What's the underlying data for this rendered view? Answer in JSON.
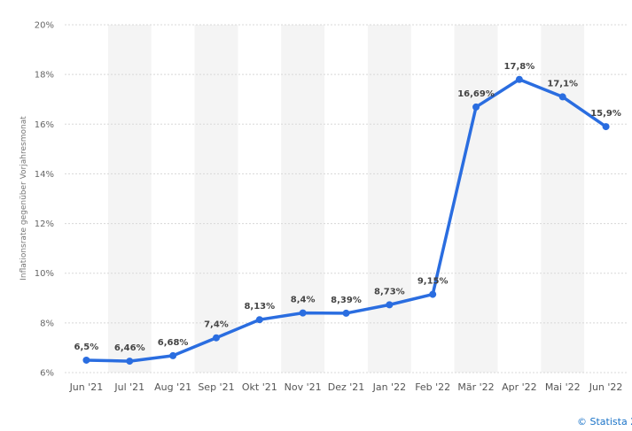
{
  "chart_data": {
    "type": "line",
    "categories": [
      "Jun '21",
      "Jul '21",
      "Aug '21",
      "Sep '21",
      "Okt '21",
      "Nov '21",
      "Dez '21",
      "Jan '22",
      "Feb '22",
      "Mär '22",
      "Apr '22",
      "Mai '22",
      "Jun '22"
    ],
    "series": [
      {
        "values": [
          6.5,
          6.46,
          6.68,
          7.4,
          8.13,
          8.4,
          8.39,
          8.73,
          9.15,
          16.69,
          17.8,
          17.1,
          15.9
        ],
        "labels": [
          "6,5%",
          "6,46%",
          "6,68%",
          "7,4%",
          "8,13%",
          "8,4%",
          "8,39%",
          "8,73%",
          "9,15%",
          "16,69%",
          "17,8%",
          "17,1%",
          "15,9%"
        ]
      }
    ],
    "yticks": [
      "6%",
      "8%",
      "10%",
      "12%",
      "14%",
      "16%",
      "18%",
      "20%"
    ],
    "ylim": [
      6,
      20
    ],
    "ylabel": "Inflationsrate gegenüber Vorjahresmonat",
    "grid": "horizontal dashed",
    "colors": {
      "line": "#2a6de0",
      "band": "#f4f4f4",
      "grid": "#d8d8d8"
    }
  },
  "credit": "© Statista 2"
}
